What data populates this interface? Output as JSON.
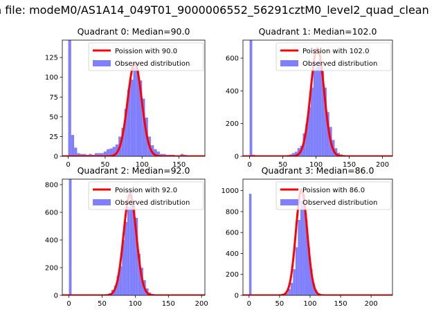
{
  "figure": {
    "suptitle": "n file: modeM0/AS1A14_049T01_9000006552_56291cztM0_level2_quad_clean"
  },
  "colors": {
    "hist": "#8080ff",
    "poisson": "#ff0000"
  },
  "chart_data": [
    {
      "type": "bar",
      "title": "Quadrant 0: Median=90.0",
      "xlim": [
        -8,
        185
      ],
      "ylim": [
        0,
        147
      ],
      "xticks": [
        0,
        50,
        100,
        150
      ],
      "yticks": [
        0,
        25,
        50,
        75,
        100,
        125
      ],
      "bin_width": 4,
      "bins": [
        [
          0,
          147
        ],
        [
          4,
          27
        ],
        [
          8,
          11
        ],
        [
          12,
          4
        ],
        [
          16,
          3
        ],
        [
          20,
          3
        ],
        [
          24,
          2
        ],
        [
          28,
          3
        ],
        [
          32,
          2
        ],
        [
          36,
          4
        ],
        [
          40,
          4
        ],
        [
          44,
          4
        ],
        [
          48,
          6
        ],
        [
          52,
          9
        ],
        [
          56,
          10
        ],
        [
          60,
          12
        ],
        [
          64,
          15
        ],
        [
          68,
          25
        ],
        [
          72,
          36
        ],
        [
          76,
          60
        ],
        [
          80,
          84
        ],
        [
          84,
          97
        ],
        [
          88,
          113
        ],
        [
          92,
          109
        ],
        [
          96,
          96
        ],
        [
          100,
          73
        ],
        [
          104,
          49
        ],
        [
          108,
          25
        ],
        [
          112,
          14
        ],
        [
          116,
          9
        ],
        [
          120,
          6
        ],
        [
          124,
          3
        ],
        [
          128,
          3
        ],
        [
          132,
          2
        ],
        [
          136,
          2
        ],
        [
          140,
          2
        ],
        [
          144,
          1
        ],
        [
          148,
          1
        ],
        [
          152,
          3
        ],
        [
          156,
          2
        ],
        [
          160,
          1
        ],
        [
          164,
          1
        ],
        [
          168,
          1
        ],
        [
          172,
          1
        ],
        [
          176,
          1
        ]
      ],
      "poisson_mean": 90.0,
      "poisson_peak": 118,
      "legend": [
        "Poission with 90.0",
        "Observed distribution"
      ],
      "legend_position": "upper right"
    },
    {
      "type": "bar",
      "title": "Quadrant 1: Median=102.0",
      "xlim": [
        -10,
        215
      ],
      "ylim": [
        0,
        710
      ],
      "xticks": [
        0,
        50,
        100,
        150,
        200
      ],
      "yticks": [
        0,
        200,
        400,
        600
      ],
      "bin_width": 4,
      "bins": [
        [
          0,
          710
        ],
        [
          4,
          10
        ],
        [
          8,
          4
        ],
        [
          12,
          3
        ],
        [
          16,
          2
        ],
        [
          20,
          2
        ],
        [
          24,
          2
        ],
        [
          28,
          3
        ],
        [
          32,
          3
        ],
        [
          36,
          3
        ],
        [
          40,
          4
        ],
        [
          44,
          4
        ],
        [
          48,
          5
        ],
        [
          52,
          6
        ],
        [
          56,
          8
        ],
        [
          60,
          12
        ],
        [
          64,
          20
        ],
        [
          68,
          28
        ],
        [
          72,
          50
        ],
        [
          76,
          65
        ],
        [
          80,
          140
        ],
        [
          84,
          200
        ],
        [
          88,
          300
        ],
        [
          92,
          420
        ],
        [
          96,
          530
        ],
        [
          100,
          580
        ],
        [
          104,
          600
        ],
        [
          108,
          520
        ],
        [
          112,
          420
        ],
        [
          116,
          270
        ],
        [
          120,
          180
        ],
        [
          124,
          100
        ],
        [
          128,
          50
        ],
        [
          132,
          22
        ],
        [
          136,
          12
        ],
        [
          140,
          8
        ],
        [
          144,
          5
        ],
        [
          148,
          4
        ],
        [
          152,
          3
        ],
        [
          156,
          3
        ],
        [
          160,
          2
        ],
        [
          164,
          2
        ],
        [
          168,
          2
        ],
        [
          172,
          1
        ],
        [
          176,
          1
        ],
        [
          180,
          1
        ],
        [
          184,
          1
        ],
        [
          188,
          1
        ],
        [
          192,
          1
        ],
        [
          196,
          1
        ],
        [
          200,
          1
        ]
      ],
      "poisson_mean": 102.0,
      "poisson_peak": 660,
      "legend": [
        "Poission with 102.0",
        "Observed distribution"
      ],
      "legend_position": "upper right"
    },
    {
      "type": "bar",
      "title": "Quadrant 2: Median=92.0",
      "xlim": [
        -10,
        205
      ],
      "ylim": [
        0,
        840
      ],
      "xticks": [
        0,
        50,
        100,
        150,
        200
      ],
      "yticks": [
        0,
        200,
        400,
        600,
        800
      ],
      "bin_width": 4,
      "bins": [
        [
          0,
          840
        ],
        [
          4,
          5
        ],
        [
          8,
          3
        ],
        [
          12,
          2
        ],
        [
          16,
          2
        ],
        [
          20,
          2
        ],
        [
          24,
          2
        ],
        [
          28,
          2
        ],
        [
          32,
          2
        ],
        [
          36,
          2
        ],
        [
          40,
          2
        ],
        [
          44,
          3
        ],
        [
          48,
          3
        ],
        [
          52,
          4
        ],
        [
          56,
          6
        ],
        [
          60,
          15
        ],
        [
          64,
          40
        ],
        [
          68,
          70
        ],
        [
          72,
          140
        ],
        [
          76,
          210
        ],
        [
          80,
          400
        ],
        [
          84,
          530
        ],
        [
          88,
          640
        ],
        [
          92,
          760
        ],
        [
          96,
          680
        ],
        [
          100,
          560
        ],
        [
          104,
          300
        ],
        [
          108,
          200
        ],
        [
          112,
          110
        ],
        [
          116,
          50
        ],
        [
          120,
          20
        ],
        [
          124,
          10
        ],
        [
          128,
          6
        ],
        [
          132,
          4
        ],
        [
          136,
          3
        ],
        [
          140,
          2
        ],
        [
          144,
          2
        ],
        [
          148,
          2
        ],
        [
          152,
          2
        ],
        [
          156,
          2
        ],
        [
          160,
          1
        ],
        [
          164,
          1
        ],
        [
          168,
          1
        ],
        [
          172,
          1
        ],
        [
          176,
          1
        ],
        [
          180,
          1
        ],
        [
          184,
          1
        ],
        [
          188,
          1
        ],
        [
          192,
          1
        ]
      ],
      "poisson_mean": 92.0,
      "poisson_peak": 730,
      "legend": [
        "Poission with 92.0",
        "Observed distribution"
      ],
      "legend_position": "upper right"
    },
    {
      "type": "bar",
      "title": "Quadrant 3: Median=86.0",
      "xlim": [
        -10,
        235
      ],
      "ylim": [
        0,
        1110
      ],
      "xticks": [
        0,
        50,
        100,
        150,
        200
      ],
      "yticks": [
        0,
        200,
        400,
        600,
        800,
        1000
      ],
      "bin_width": 4,
      "bins": [
        [
          0,
          970
        ],
        [
          4,
          5
        ],
        [
          8,
          3
        ],
        [
          12,
          2
        ],
        [
          16,
          2
        ],
        [
          20,
          2
        ],
        [
          24,
          2
        ],
        [
          28,
          2
        ],
        [
          32,
          2
        ],
        [
          36,
          2
        ],
        [
          40,
          2
        ],
        [
          44,
          3
        ],
        [
          48,
          3
        ],
        [
          52,
          4
        ],
        [
          56,
          6
        ],
        [
          60,
          20
        ],
        [
          64,
          60
        ],
        [
          68,
          120
        ],
        [
          72,
          250
        ],
        [
          76,
          460
        ],
        [
          80,
          720
        ],
        [
          84,
          900
        ],
        [
          88,
          960
        ],
        [
          92,
          720
        ],
        [
          96,
          460
        ],
        [
          100,
          250
        ],
        [
          104,
          110
        ],
        [
          108,
          50
        ],
        [
          112,
          20
        ],
        [
          116,
          8
        ],
        [
          120,
          4
        ],
        [
          124,
          3
        ],
        [
          128,
          2
        ],
        [
          132,
          2
        ],
        [
          136,
          2
        ],
        [
          140,
          1
        ],
        [
          144,
          1
        ],
        [
          148,
          1
        ],
        [
          152,
          1
        ],
        [
          156,
          1
        ],
        [
          160,
          1
        ],
        [
          164,
          1
        ],
        [
          168,
          1
        ],
        [
          172,
          1
        ],
        [
          176,
          1
        ],
        [
          180,
          1
        ],
        [
          184,
          1
        ],
        [
          188,
          1
        ],
        [
          192,
          1
        ],
        [
          196,
          1
        ],
        [
          200,
          1
        ],
        [
          204,
          1
        ],
        [
          208,
          1
        ],
        [
          212,
          1
        ],
        [
          216,
          1
        ],
        [
          220,
          1
        ]
      ],
      "poisson_mean": 86.0,
      "poisson_peak": 1010,
      "legend": [
        "Poission with 86.0",
        "Observed distribution"
      ],
      "legend_position": "upper right"
    }
  ]
}
